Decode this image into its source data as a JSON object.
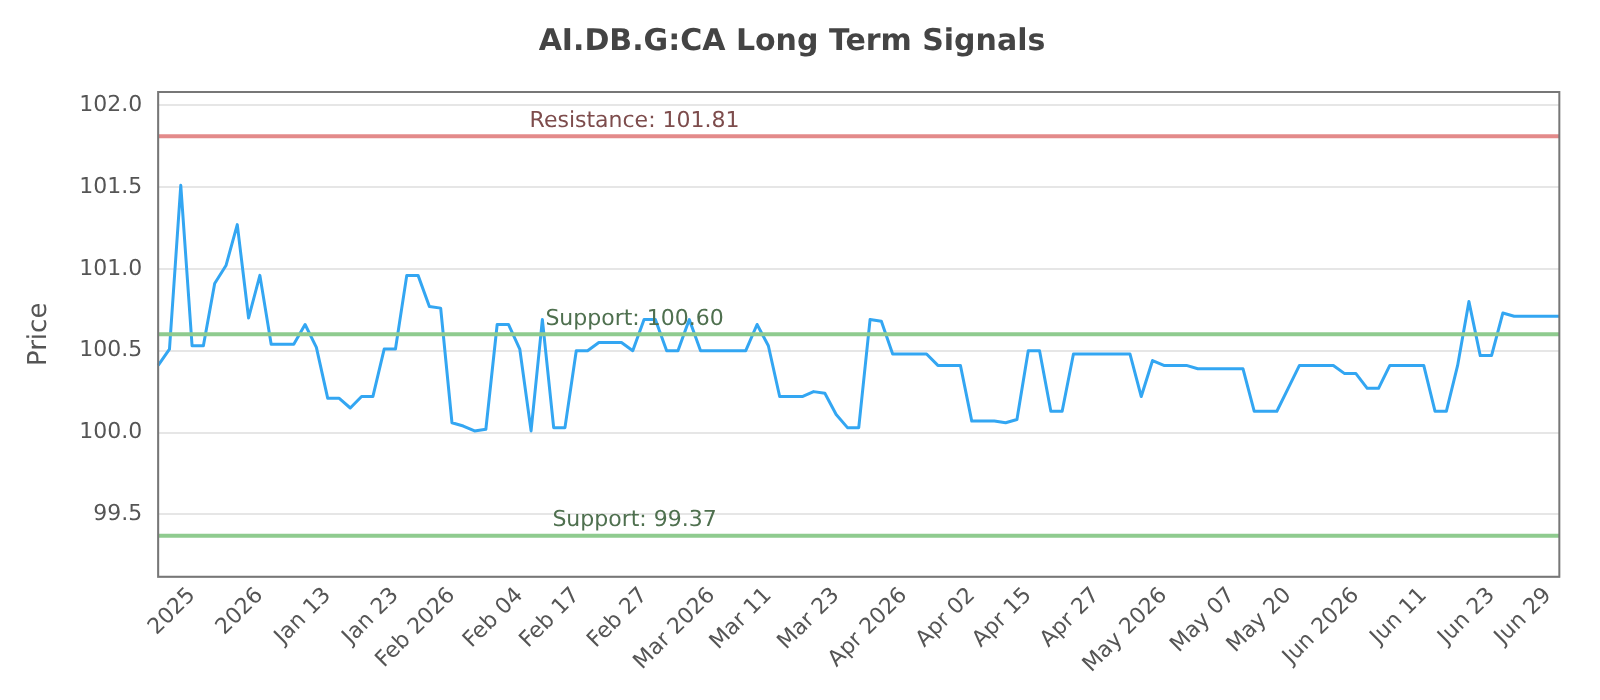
{
  "chart_data": {
    "type": "line",
    "title": "AI.DB.G:CA Long Term Signals",
    "ylabel": "Price",
    "categories": [
      null,
      null,
      null,
      "2025",
      null,
      null,
      null,
      null,
      null,
      "2026",
      null,
      null,
      null,
      null,
      null,
      "Jan 13",
      null,
      null,
      null,
      null,
      null,
      "Jan 23",
      null,
      null,
      null,
      null,
      "Feb 2026",
      null,
      null,
      null,
      null,
      null,
      "Feb 04",
      null,
      null,
      null,
      null,
      "Feb 17",
      null,
      null,
      null,
      null,
      null,
      "Feb 27",
      null,
      null,
      null,
      null,
      null,
      "Mar 2026",
      null,
      null,
      null,
      null,
      "Mar 11",
      null,
      null,
      null,
      null,
      null,
      "Mar 23",
      null,
      null,
      null,
      null,
      null,
      "Apr 2026",
      null,
      null,
      null,
      null,
      null,
      "Apr 02",
      null,
      null,
      null,
      null,
      "Apr 15",
      null,
      null,
      null,
      null,
      null,
      "Apr 27",
      null,
      null,
      null,
      null,
      null,
      "May 2026",
      null,
      null,
      null,
      null,
      null,
      "May 07",
      null,
      null,
      null,
      null,
      "May 20",
      null,
      null,
      null,
      null,
      null,
      "Jun 2026",
      null,
      null,
      null,
      null,
      null,
      "Jun 11",
      null,
      null,
      null,
      null,
      null,
      "Jun 23",
      null,
      null,
      null,
      null,
      "Jun 29",
      null
    ],
    "series": [
      {
        "color": "#33a6f2",
        "values": [
          100.41,
          100.51,
          101.51,
          100.53,
          100.53,
          100.91,
          101.02,
          101.27,
          100.7,
          100.96,
          100.54,
          100.54,
          100.54,
          100.66,
          100.52,
          100.21,
          100.21,
          100.15,
          100.22,
          100.22,
          100.51,
          100.51,
          100.96,
          100.96,
          100.77,
          100.76,
          100.06,
          100.04,
          100.01,
          100.02,
          100.66,
          100.66,
          100.51,
          100.01,
          100.69,
          100.03,
          100.03,
          100.5,
          100.5,
          100.55,
          100.55,
          100.55,
          100.5,
          100.69,
          100.69,
          100.5,
          100.5,
          100.69,
          100.5,
          100.5,
          100.5,
          100.5,
          100.5,
          100.66,
          100.53,
          100.22,
          100.22,
          100.22,
          100.25,
          100.24,
          100.11,
          100.03,
          100.03,
          100.69,
          100.68,
          100.48,
          100.48,
          100.48,
          100.48,
          100.41,
          100.41,
          100.41,
          100.07,
          100.07,
          100.07,
          100.06,
          100.08,
          100.5,
          100.5,
          100.13,
          100.13,
          100.48,
          100.48,
          100.48,
          100.48,
          100.48,
          100.48,
          100.22,
          100.44,
          100.41,
          100.41,
          100.41,
          100.39,
          100.39,
          100.39,
          100.39,
          100.39,
          100.13,
          100.13,
          100.13,
          100.27,
          100.41,
          100.41,
          100.41,
          100.41,
          100.36,
          100.36,
          100.27,
          100.27,
          100.41,
          100.41,
          100.41,
          100.41,
          100.13,
          100.13,
          100.41,
          100.8,
          100.47,
          100.47,
          100.73,
          100.71,
          100.71,
          100.71,
          100.71,
          100.71
        ]
      }
    ],
    "ylim": [
      99.12,
      102.08
    ],
    "yticks": [
      {
        "value": 99.5,
        "label": "99.5"
      },
      {
        "value": 100,
        "label": "100.0"
      },
      {
        "value": 100.5,
        "label": "100.5"
      },
      {
        "value": 101,
        "label": "101.0"
      },
      {
        "value": 101.5,
        "label": "101.5"
      },
      {
        "value": 102,
        "label": "102.0"
      }
    ],
    "grid": "y",
    "marker": "none",
    "line_style": "solid",
    "ref_lines": [
      {
        "axis": "y",
        "value": 101.81,
        "label": "Resistance: 101.81",
        "color": "#e38a8a"
      },
      {
        "axis": "y",
        "value": 100.6,
        "label": "Support: 100.60",
        "color": "#8fcb8f"
      },
      {
        "axis": "y",
        "value": 99.37,
        "label": "Support: 99.37",
        "color": "#8fcb8f"
      }
    ]
  }
}
